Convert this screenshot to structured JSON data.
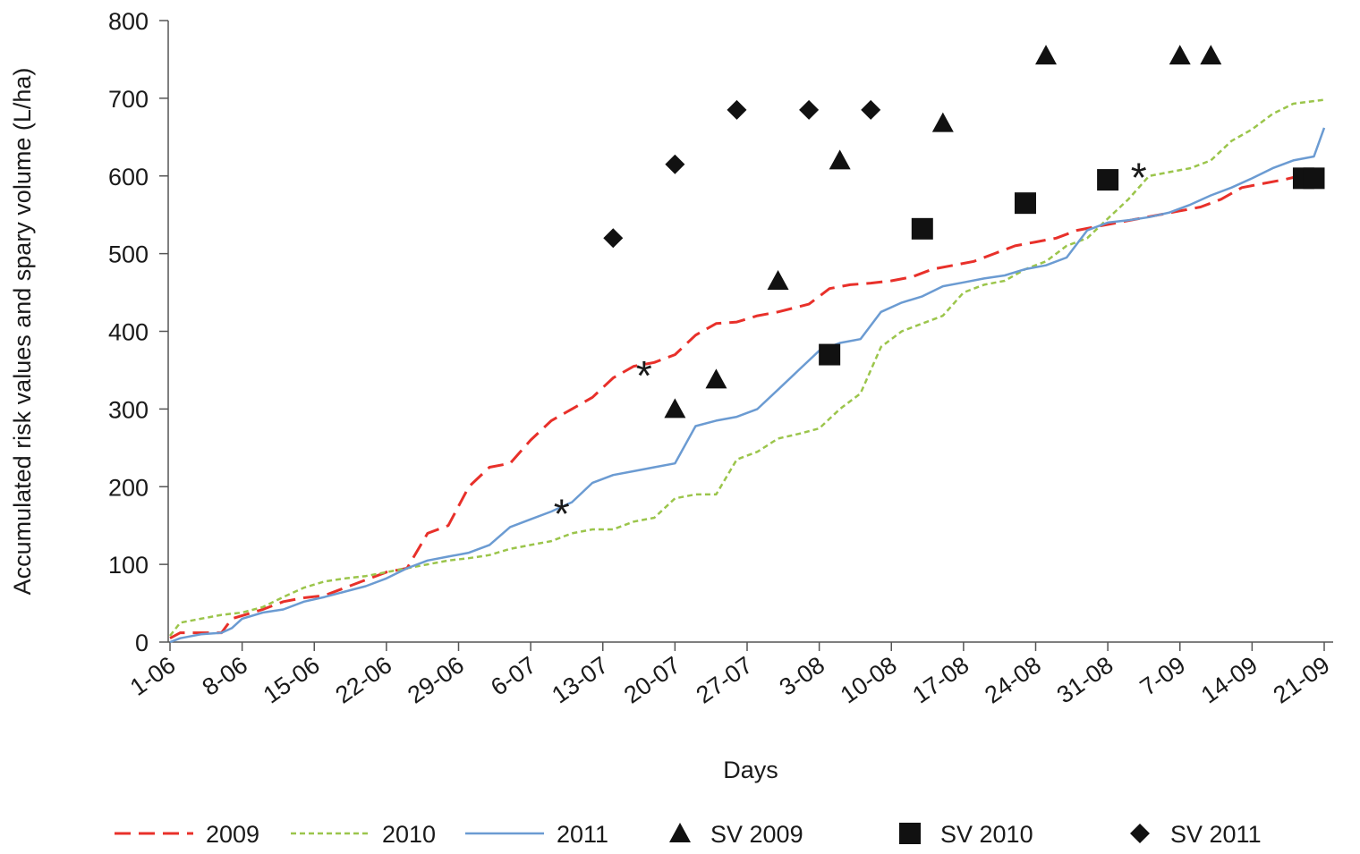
{
  "chart_data": {
    "type": "line",
    "xlabel": "Days",
    "ylabel": "Accumulated risk values and spary volume (L/ha)",
    "ylim": [
      0,
      800
    ],
    "y_ticks": [
      0,
      100,
      200,
      300,
      400,
      500,
      600,
      700,
      800
    ],
    "x_range": [
      "1-06",
      "21-09"
    ],
    "x_ticks": [
      "1-06",
      "8-06",
      "15-06",
      "22-06",
      "29-06",
      "6-07",
      "13-07",
      "20-07",
      "27-07",
      "3-08",
      "10-08",
      "17-08",
      "24-08",
      "31-08",
      "7-09",
      "14-09",
      "21-09"
    ],
    "grid": false,
    "legend_position": "bottom",
    "series": [
      {
        "name": "2009",
        "kind": "line",
        "style": "dashed",
        "color": "#e8302a",
        "x": [
          "1-06",
          "2-06",
          "4-06",
          "6-06",
          "7-06",
          "10-06",
          "12-06",
          "14-06",
          "16-06",
          "18-06",
          "20-06",
          "22-06",
          "24-06",
          "26-06",
          "28-06",
          "30-06",
          "2-07",
          "4-07",
          "6-07",
          "8-07",
          "10-07",
          "12-07",
          "14-07",
          "16-07",
          "18-07",
          "20-07",
          "22-07",
          "24-07",
          "26-07",
          "28-07",
          "30-07",
          "2-08",
          "4-08",
          "6-08",
          "8-08",
          "10-08",
          "12-08",
          "14-08",
          "16-08",
          "18-08",
          "20-08",
          "22-08",
          "24-08",
          "26-08",
          "28-08",
          "30-08",
          "1-09",
          "3-09",
          "5-09",
          "7-09",
          "9-09",
          "11-09",
          "13-09",
          "15-09",
          "17-09",
          "18-09"
        ],
        "y": [
          5,
          12,
          12,
          12,
          30,
          42,
          52,
          57,
          60,
          70,
          80,
          90,
          95,
          140,
          150,
          200,
          225,
          230,
          260,
          285,
          300,
          315,
          340,
          355,
          360,
          370,
          395,
          410,
          412,
          420,
          425,
          435,
          455,
          460,
          462,
          465,
          470,
          480,
          485,
          490,
          500,
          510,
          515,
          520,
          530,
          535,
          540,
          545,
          550,
          555,
          560,
          570,
          585,
          590,
          595,
          598
        ]
      },
      {
        "name": "2010",
        "kind": "line",
        "style": "dotted",
        "color": "#9bc54b",
        "x": [
          "1-06",
          "2-06",
          "4-06",
          "6-06",
          "8-06",
          "10-06",
          "12-06",
          "14-06",
          "16-06",
          "18-06",
          "20-06",
          "22-06",
          "24-06",
          "26-06",
          "28-06",
          "30-06",
          "2-07",
          "4-07",
          "6-07",
          "8-07",
          "10-07",
          "12-07",
          "14-07",
          "16-07",
          "18-07",
          "20-07",
          "22-07",
          "24-07",
          "26-07",
          "28-07",
          "30-07",
          "1-08",
          "3-08",
          "5-08",
          "7-08",
          "9-08",
          "11-08",
          "13-08",
          "15-08",
          "17-08",
          "19-08",
          "21-08",
          "23-08",
          "25-08",
          "27-08",
          "29-08",
          "31-08",
          "2-09",
          "4-09",
          "6-09",
          "8-09",
          "10-09",
          "12-09",
          "14-09",
          "16-09",
          "18-09",
          "21-09"
        ],
        "y": [
          8,
          25,
          30,
          35,
          38,
          45,
          58,
          70,
          78,
          82,
          85,
          90,
          95,
          100,
          105,
          108,
          112,
          120,
          125,
          130,
          140,
          145,
          145,
          155,
          160,
          185,
          190,
          190,
          235,
          245,
          262,
          268,
          275,
          300,
          320,
          380,
          400,
          410,
          420,
          450,
          460,
          465,
          480,
          490,
          510,
          520,
          545,
          570,
          600,
          605,
          610,
          620,
          645,
          660,
          680,
          693,
          698
        ]
      },
      {
        "name": "2011",
        "kind": "line",
        "style": "solid",
        "color": "#6b9bd2",
        "x": [
          "1-06",
          "2-06",
          "4-06",
          "6-06",
          "7-06",
          "8-06",
          "10-06",
          "12-06",
          "14-06",
          "16-06",
          "18-06",
          "20-06",
          "22-06",
          "24-06",
          "26-06",
          "28-06",
          "30-06",
          "2-07",
          "4-07",
          "6-07",
          "8-07",
          "10-07",
          "12-07",
          "14-07",
          "16-07",
          "18-07",
          "20-07",
          "22-07",
          "24-07",
          "26-07",
          "28-07",
          "30-07",
          "1-08",
          "3-08",
          "5-08",
          "7-08",
          "9-08",
          "11-08",
          "13-08",
          "15-08",
          "17-08",
          "19-08",
          "21-08",
          "23-08",
          "25-08",
          "27-08",
          "29-08",
          "31-08",
          "2-09",
          "4-09",
          "6-09",
          "8-09",
          "10-09",
          "12-09",
          "14-09",
          "16-09",
          "18-09",
          "20-09",
          "21-09"
        ],
        "y": [
          0,
          5,
          10,
          12,
          18,
          30,
          38,
          42,
          52,
          58,
          65,
          72,
          82,
          95,
          105,
          110,
          115,
          125,
          148,
          158,
          168,
          180,
          205,
          215,
          220,
          225,
          230,
          278,
          285,
          290,
          300,
          325,
          350,
          375,
          385,
          390,
          425,
          437,
          445,
          458,
          463,
          468,
          472,
          480,
          485,
          495,
          530,
          540,
          543,
          547,
          553,
          563,
          575,
          585,
          597,
          610,
          620,
          625,
          662
        ]
      },
      {
        "name": "SV 2009",
        "kind": "marker",
        "marker": "triangle",
        "color": "#111111",
        "x": [
          "20-07",
          "24-07",
          "30-07",
          "5-08",
          "15-08",
          "25-08",
          "7-09",
          "10-09"
        ],
        "y": [
          300,
          338,
          465,
          620,
          668,
          755,
          755,
          755
        ]
      },
      {
        "name": "SV 2010",
        "kind": "marker",
        "marker": "square",
        "color": "#111111",
        "x": [
          "4-08",
          "13-08",
          "23-08",
          "31-08",
          "19-09",
          "20-09"
        ],
        "y": [
          370,
          532,
          565,
          595,
          597,
          597
        ]
      },
      {
        "name": "SV 2011",
        "kind": "marker",
        "marker": "diamond",
        "color": "#111111",
        "x": [
          "14-07",
          "20-07",
          "26-07",
          "2-08",
          "8-08"
        ],
        "y": [
          520,
          615,
          685,
          685,
          685
        ]
      }
    ],
    "annotations": [
      {
        "text": "*",
        "x": "9-07",
        "y": 172
      },
      {
        "text": "*",
        "x": "17-07",
        "y": 350
      },
      {
        "text": "*",
        "x": "3-09",
        "y": 605
      }
    ]
  }
}
